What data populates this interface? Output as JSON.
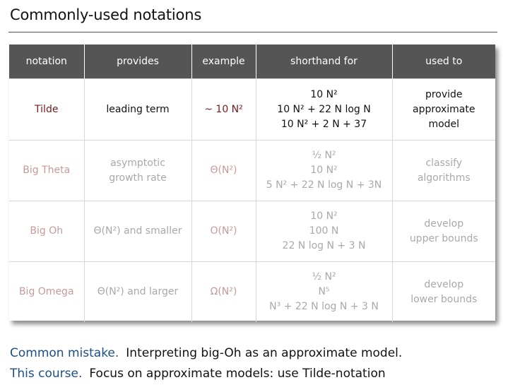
{
  "title": "Commonly-used notations",
  "table": {
    "headers": [
      "notation",
      "provides",
      "example",
      "shorthand for",
      "used to"
    ],
    "rows": [
      {
        "notation": "Tilde",
        "provides": "leading term",
        "example": "~ 10 N²",
        "shorthand": [
          "10 N²",
          "10 N² + 22 N log N",
          "10 N² + 2 N + 37"
        ],
        "used_to": [
          "provide",
          "approximate",
          "model"
        ]
      },
      {
        "notation": "Big Theta",
        "provides": [
          "asymptotic",
          "growth rate"
        ],
        "example": "Θ(N²)",
        "shorthand": [
          "½ N²",
          "10 N²",
          "5 N² + 22 N log N + 3N"
        ],
        "used_to": [
          "classify",
          "algorithms"
        ]
      },
      {
        "notation": "Big Oh",
        "provides": "Θ(N²) and smaller",
        "example": "O(N²)",
        "shorthand": [
          "10 N²",
          "100 N",
          "22 N log N + 3 N"
        ],
        "used_to": [
          "develop",
          "upper bounds"
        ]
      },
      {
        "notation": "Big Omega",
        "provides": "Θ(N²) and larger",
        "example": "Ω(N²)",
        "shorthand": [
          "½ N²",
          "N⁵",
          "N³ + 22 N log N + 3 N"
        ],
        "used_to": [
          "develop",
          "lower bounds"
        ]
      }
    ]
  },
  "footer": {
    "line1_lead": "Common mistake.",
    "line1_text": "Interpreting big-Oh as an approximate model.",
    "line2_lead": "This course.",
    "line2_text": "Focus on approximate models: use Tilde-notation"
  }
}
